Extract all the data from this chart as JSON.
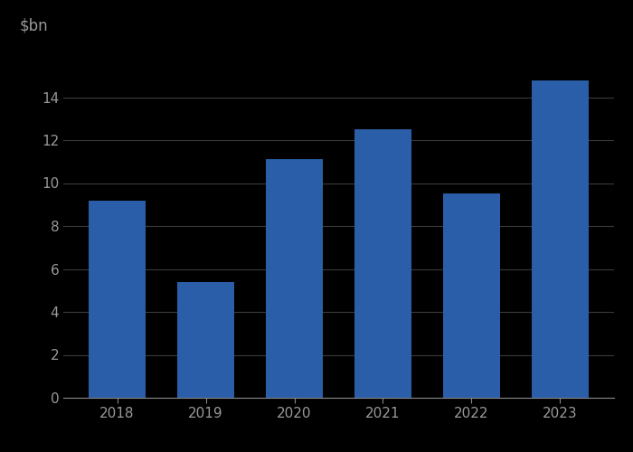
{
  "categories": [
    "2018",
    "2019",
    "2020",
    "2021",
    "2022",
    "2023"
  ],
  "values": [
    9.2,
    5.4,
    11.1,
    12.5,
    9.5,
    14.8
  ],
  "bar_color": "#2a5ea8",
  "ylabel_text": "$bn",
  "ylim": [
    0,
    16
  ],
  "yticks": [
    0,
    2,
    4,
    6,
    8,
    10,
    12,
    14
  ],
  "background_color": "#000000",
  "grid_color": "#3a3a3a",
  "tick_label_color": "#999999",
  "ylabel_color": "#999999",
  "bar_width": 0.65,
  "ylabel_fontsize": 12,
  "tick_fontsize": 11,
  "spine_color": "#555555",
  "bottom_spine_color": "#888888"
}
